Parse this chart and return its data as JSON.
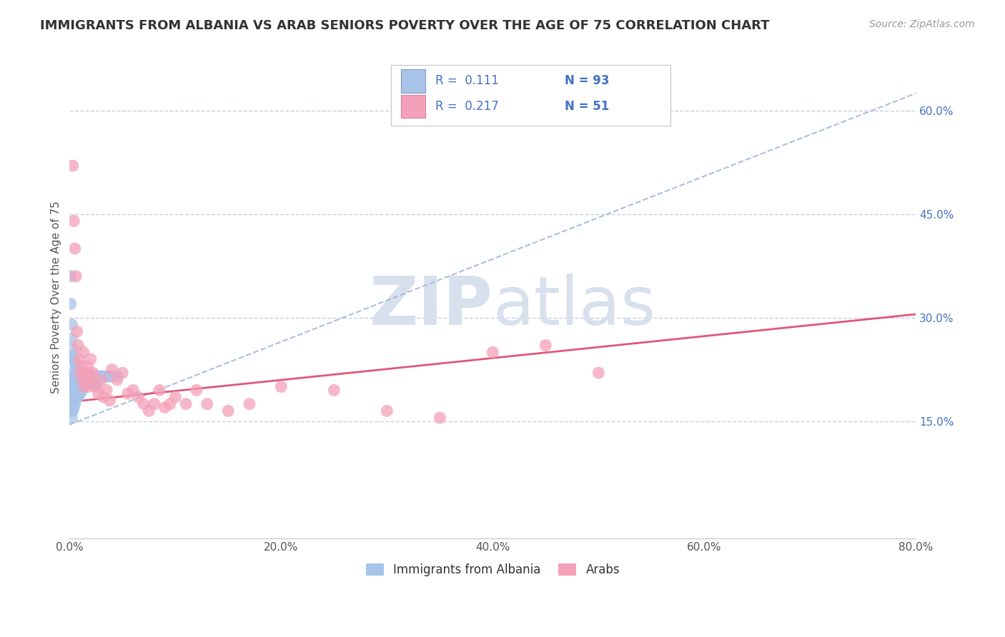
{
  "title": "IMMIGRANTS FROM ALBANIA VS ARAB SENIORS POVERTY OVER THE AGE OF 75 CORRELATION CHART",
  "source": "Source: ZipAtlas.com",
  "ylabel": "Seniors Poverty Over the Age of 75",
  "xlim": [
    0.0,
    0.8
  ],
  "ylim": [
    -0.02,
    0.68
  ],
  "xticks": [
    0.0,
    0.2,
    0.4,
    0.6,
    0.8
  ],
  "xtick_labels": [
    "0.0%",
    "20.0%",
    "40.0%",
    "60.0%",
    "80.0%"
  ],
  "yticks_right": [
    0.15,
    0.3,
    0.45,
    0.6
  ],
  "ytick_labels_right": [
    "15.0%",
    "30.0%",
    "45.0%",
    "60.0%"
  ],
  "albania_color": "#a8c4e8",
  "arab_color": "#f4a0b8",
  "albania_line_color": "#a0b8d8",
  "arab_line_color": "#e05878",
  "watermark_zip": "ZIP",
  "watermark_atlas": "atlas",
  "watermark_color": "#d8e0ee",
  "legend_label_albania": "Immigrants from Albania",
  "legend_label_arab": "Arabs",
  "legend_r1": "R =  0.111",
  "legend_n1": "N = 93",
  "legend_r2": "R =  0.217",
  "legend_n2": "N = 51",
  "albania_trend_x0": 0.0,
  "albania_trend_y0": 0.145,
  "albania_trend_x1": 0.8,
  "albania_trend_y1": 0.625,
  "arab_trend_x0": 0.0,
  "arab_trend_y0": 0.178,
  "arab_trend_x1": 0.8,
  "arab_trend_y1": 0.305,
  "albania_x": [
    0.001,
    0.001,
    0.001,
    0.001,
    0.001,
    0.002,
    0.002,
    0.002,
    0.002,
    0.002,
    0.002,
    0.002,
    0.003,
    0.003,
    0.003,
    0.003,
    0.003,
    0.003,
    0.004,
    0.004,
    0.004,
    0.004,
    0.004,
    0.004,
    0.005,
    0.005,
    0.005,
    0.005,
    0.005,
    0.006,
    0.006,
    0.006,
    0.006,
    0.007,
    0.007,
    0.007,
    0.007,
    0.008,
    0.008,
    0.008,
    0.008,
    0.009,
    0.009,
    0.009,
    0.01,
    0.01,
    0.01,
    0.01,
    0.011,
    0.011,
    0.011,
    0.012,
    0.012,
    0.012,
    0.013,
    0.013,
    0.014,
    0.014,
    0.015,
    0.015,
    0.016,
    0.016,
    0.017,
    0.017,
    0.018,
    0.018,
    0.019,
    0.02,
    0.02,
    0.021,
    0.022,
    0.022,
    0.023,
    0.024,
    0.025,
    0.026,
    0.028,
    0.03,
    0.032,
    0.035,
    0.038,
    0.04,
    0.045,
    0.001,
    0.001,
    0.002,
    0.002,
    0.003,
    0.003,
    0.004,
    0.005,
    0.006,
    0.007
  ],
  "albania_y": [
    0.205,
    0.195,
    0.185,
    0.175,
    0.165,
    0.21,
    0.2,
    0.195,
    0.185,
    0.175,
    0.165,
    0.155,
    0.215,
    0.205,
    0.195,
    0.185,
    0.175,
    0.165,
    0.22,
    0.21,
    0.2,
    0.19,
    0.18,
    0.17,
    0.215,
    0.205,
    0.195,
    0.185,
    0.175,
    0.22,
    0.21,
    0.2,
    0.19,
    0.215,
    0.205,
    0.195,
    0.185,
    0.215,
    0.205,
    0.195,
    0.185,
    0.215,
    0.205,
    0.195,
    0.22,
    0.21,
    0.2,
    0.19,
    0.22,
    0.21,
    0.2,
    0.215,
    0.205,
    0.195,
    0.215,
    0.205,
    0.215,
    0.205,
    0.215,
    0.205,
    0.215,
    0.205,
    0.215,
    0.205,
    0.215,
    0.205,
    0.215,
    0.215,
    0.205,
    0.215,
    0.215,
    0.205,
    0.215,
    0.205,
    0.215,
    0.205,
    0.215,
    0.215,
    0.215,
    0.215,
    0.215,
    0.215,
    0.215,
    0.36,
    0.32,
    0.29,
    0.27,
    0.255,
    0.245,
    0.24,
    0.235,
    0.23,
    0.225
  ],
  "arab_x": [
    0.003,
    0.004,
    0.005,
    0.006,
    0.007,
    0.008,
    0.009,
    0.01,
    0.011,
    0.012,
    0.013,
    0.014,
    0.015,
    0.016,
    0.017,
    0.018,
    0.019,
    0.02,
    0.021,
    0.022,
    0.025,
    0.027,
    0.03,
    0.032,
    0.035,
    0.038,
    0.04,
    0.045,
    0.05,
    0.055,
    0.06,
    0.065,
    0.07,
    0.075,
    0.08,
    0.085,
    0.09,
    0.095,
    0.1,
    0.11,
    0.12,
    0.13,
    0.15,
    0.17,
    0.2,
    0.25,
    0.3,
    0.35,
    0.4,
    0.45,
    0.5
  ],
  "arab_y": [
    0.52,
    0.44,
    0.4,
    0.36,
    0.28,
    0.26,
    0.24,
    0.22,
    0.23,
    0.21,
    0.25,
    0.2,
    0.22,
    0.21,
    0.23,
    0.2,
    0.22,
    0.24,
    0.21,
    0.22,
    0.2,
    0.19,
    0.21,
    0.185,
    0.195,
    0.18,
    0.225,
    0.21,
    0.22,
    0.19,
    0.195,
    0.185,
    0.175,
    0.165,
    0.175,
    0.195,
    0.17,
    0.175,
    0.185,
    0.175,
    0.195,
    0.175,
    0.165,
    0.175,
    0.2,
    0.195,
    0.165,
    0.155,
    0.25,
    0.26,
    0.22
  ]
}
